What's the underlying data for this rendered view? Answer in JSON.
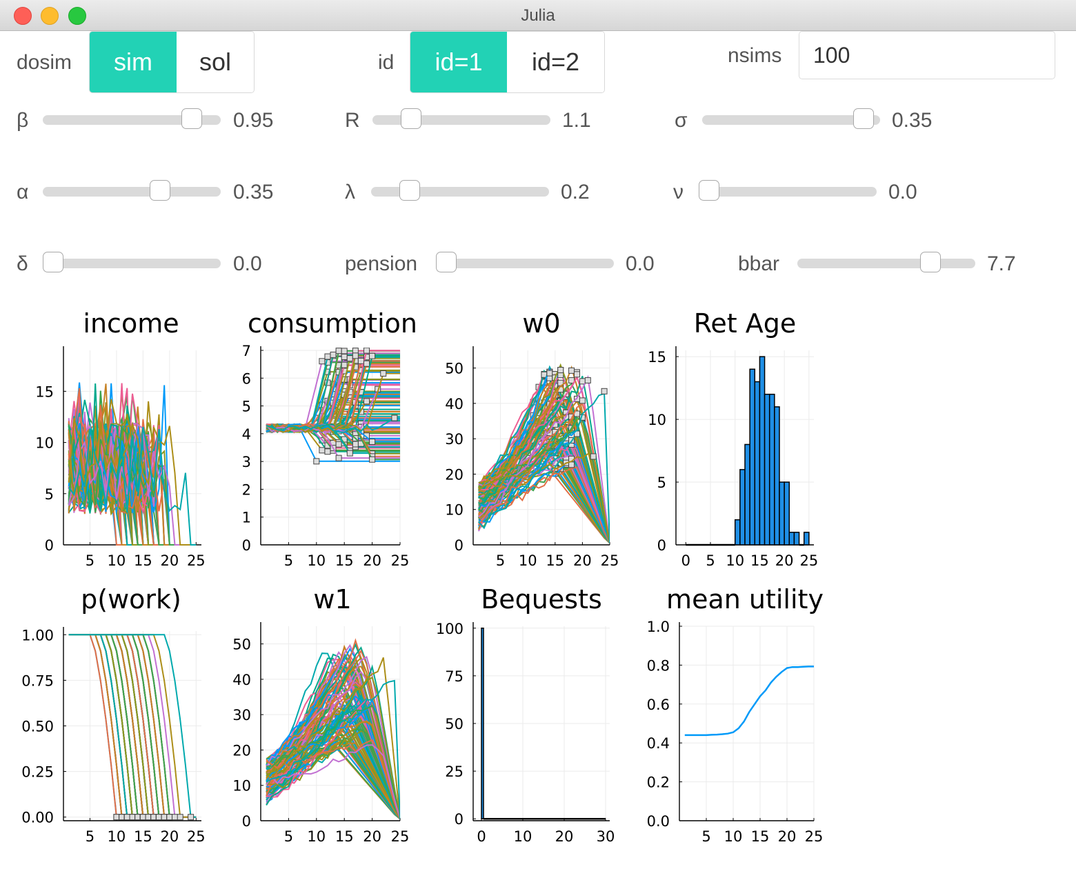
{
  "window": {
    "title": "Julia"
  },
  "controls": {
    "dosim": {
      "label": "dosim",
      "options": [
        "sim",
        "sol"
      ],
      "selected": "sim"
    },
    "id": {
      "label": "id",
      "options": [
        "id=1",
        "id=2"
      ],
      "selected": "id=1"
    },
    "nsims": {
      "label": "nsims",
      "value": "100"
    },
    "sliders": {
      "beta": {
        "label": "β",
        "value": "0.95",
        "position": 0.88
      },
      "R": {
        "label": "R",
        "value": "1.1",
        "position": 0.18
      },
      "sigma": {
        "label": "σ",
        "value": "0.35",
        "position": 0.96
      },
      "alpha": {
        "label": "α",
        "value": "0.35",
        "position": 0.68
      },
      "lambda": {
        "label": "λ",
        "value": "0.2",
        "position": 0.18
      },
      "nu": {
        "label": "ν",
        "value": "0.0",
        "position": 0.0
      },
      "delta": {
        "label": "δ",
        "value": "0.0",
        "position": 0.0
      },
      "pension": {
        "label": "pension",
        "value": "0.0",
        "position": 0.0
      },
      "bbar": {
        "label": "bbar",
        "value": "7.7",
        "position": 0.78
      }
    }
  },
  "palette": [
    "#009af9",
    "#e26f46",
    "#3da44d",
    "#c271d2",
    "#ac8e18",
    "#00a9ad",
    "#ed5e93",
    "#c68225",
    "#00a98d",
    "#8e971e"
  ],
  "chart_data": [
    {
      "type": "line",
      "title": "income",
      "xlabel": "",
      "ylabel": "",
      "xlim": [
        0,
        26
      ],
      "ylim": [
        0,
        19
      ],
      "xticks": [
        "5",
        "10",
        "15",
        "20",
        "25"
      ],
      "yticks": [
        "0",
        "5",
        "10",
        "15"
      ],
      "description_of_series": "approx. 100 simulated income paths, values roughly 2–16 for ages 2–(retirement age), then 0"
    },
    {
      "type": "line",
      "title": "consumption",
      "xlabel": "",
      "ylabel": "",
      "xlim": [
        0,
        25
      ],
      "ylim": [
        0,
        7
      ],
      "xticks": [
        "5",
        "10",
        "15",
        "20",
        "25"
      ],
      "yticks": [
        "0",
        "1",
        "2",
        "3",
        "4",
        "5",
        "6",
        "7"
      ]
    },
    {
      "type": "line",
      "title": "w0",
      "xlabel": "",
      "ylabel": "",
      "xlim": [
        0,
        25
      ],
      "ylim": [
        0,
        55
      ],
      "xticks": [
        "5",
        "10",
        "15",
        "20",
        "25"
      ],
      "yticks": [
        "0",
        "10",
        "20",
        "30",
        "40",
        "50"
      ]
    },
    {
      "type": "bar",
      "title": "Ret Age",
      "xlabel": "",
      "ylabel": "",
      "xlim": [
        -2,
        26
      ],
      "ylim": [
        0,
        15.5
      ],
      "xticks": [
        "0",
        "5",
        "10",
        "15",
        "20",
        "25"
      ],
      "yticks": [
        "0",
        "5",
        "10",
        "15"
      ],
      "categories": [
        10,
        11,
        12,
        13,
        14,
        15,
        16,
        17,
        18,
        19,
        20,
        21,
        22,
        23,
        24
      ],
      "values": [
        2,
        6,
        8,
        14,
        13,
        15,
        12,
        12,
        11,
        5,
        5,
        1,
        1,
        0,
        1
      ]
    },
    {
      "type": "line",
      "title": "p(work)",
      "xlabel": "",
      "ylabel": "",
      "xlim": [
        0,
        26
      ],
      "ylim": [
        -0.02,
        1.02
      ],
      "xticks": [
        "5",
        "10",
        "15",
        "20",
        "25"
      ],
      "yticks": [
        "0.00",
        "0.25",
        "0.50",
        "0.75",
        "1.00"
      ]
    },
    {
      "type": "line",
      "title": "w1",
      "xlabel": "",
      "ylabel": "",
      "xlim": [
        0,
        25
      ],
      "ylim": [
        0,
        55
      ],
      "xticks": [
        "5",
        "10",
        "15",
        "20",
        "25"
      ],
      "yticks": [
        "0",
        "10",
        "20",
        "30",
        "40",
        "50"
      ]
    },
    {
      "type": "bar",
      "title": "Bequests",
      "xlabel": "",
      "ylabel": "",
      "xlim": [
        -2,
        31
      ],
      "ylim": [
        -1,
        101
      ],
      "xticks": [
        "0",
        "10",
        "20",
        "30"
      ],
      "yticks": [
        "0",
        "25",
        "50",
        "75",
        "100"
      ],
      "bins": [
        [
          0,
          0.5,
          100
        ],
        [
          0.5,
          30,
          0
        ]
      ]
    },
    {
      "type": "line",
      "title": "mean utility",
      "xlabel": "",
      "ylabel": "",
      "xlim": [
        0,
        25
      ],
      "ylim": [
        0,
        1
      ],
      "xticks": [
        "5",
        "10",
        "15",
        "20",
        "25"
      ],
      "yticks": [
        "0.0",
        "0.2",
        "0.4",
        "0.6",
        "0.8",
        "1.0"
      ],
      "x": [
        1,
        2,
        3,
        4,
        5,
        6,
        7,
        8,
        9,
        10,
        11,
        12,
        13,
        14,
        15,
        16,
        17,
        18,
        19,
        20,
        21,
        22,
        23,
        24,
        25
      ],
      "y": [
        0.44,
        0.44,
        0.44,
        0.44,
        0.44,
        0.442,
        0.443,
        0.445,
        0.448,
        0.455,
        0.475,
        0.51,
        0.56,
        0.6,
        0.64,
        0.67,
        0.71,
        0.74,
        0.765,
        0.785,
        0.79,
        0.79,
        0.792,
        0.793,
        0.793
      ]
    }
  ]
}
